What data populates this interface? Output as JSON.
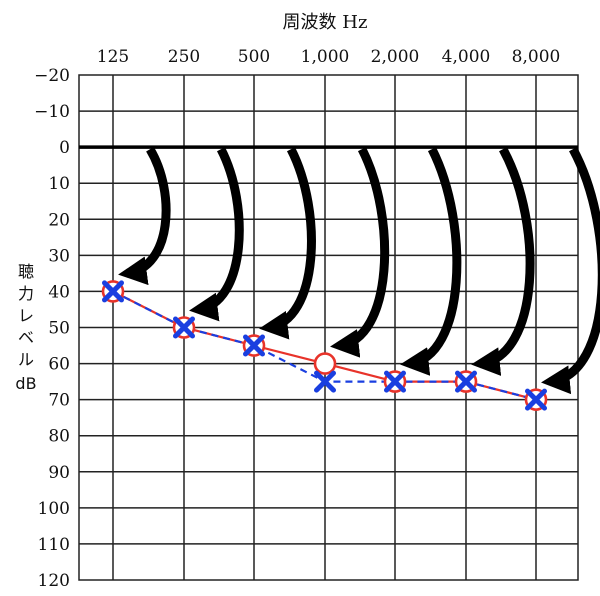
{
  "chart_data": {
    "type": "line",
    "title": "周波数 Hz",
    "ylabel": [
      "聴",
      "力",
      "レ",
      "ベ",
      "ル",
      "dB"
    ],
    "categories": [
      "125",
      "250",
      "500",
      "1,000",
      "2,000",
      "4,000",
      "8,000"
    ],
    "y_ticks": [
      "−20",
      "−10",
      "0",
      "10",
      "20",
      "30",
      "40",
      "50",
      "60",
      "70",
      "80",
      "90",
      "100",
      "110",
      "120"
    ],
    "ylim": [
      -20,
      120
    ],
    "y_inverted": true,
    "reference_line": 0,
    "series": [
      {
        "marker": "circle",
        "line": "solid",
        "color": "#e8332a",
        "values": [
          40,
          50,
          55,
          60,
          65,
          65,
          70
        ]
      },
      {
        "marker": "cross",
        "line": "dashed",
        "color": "#1a3fe0",
        "values": [
          40,
          50,
          55,
          65,
          65,
          65,
          70
        ]
      }
    ],
    "arrows": {
      "color": "#000000",
      "count": 7,
      "direction": "from 0 dB line down to each measured point"
    }
  }
}
